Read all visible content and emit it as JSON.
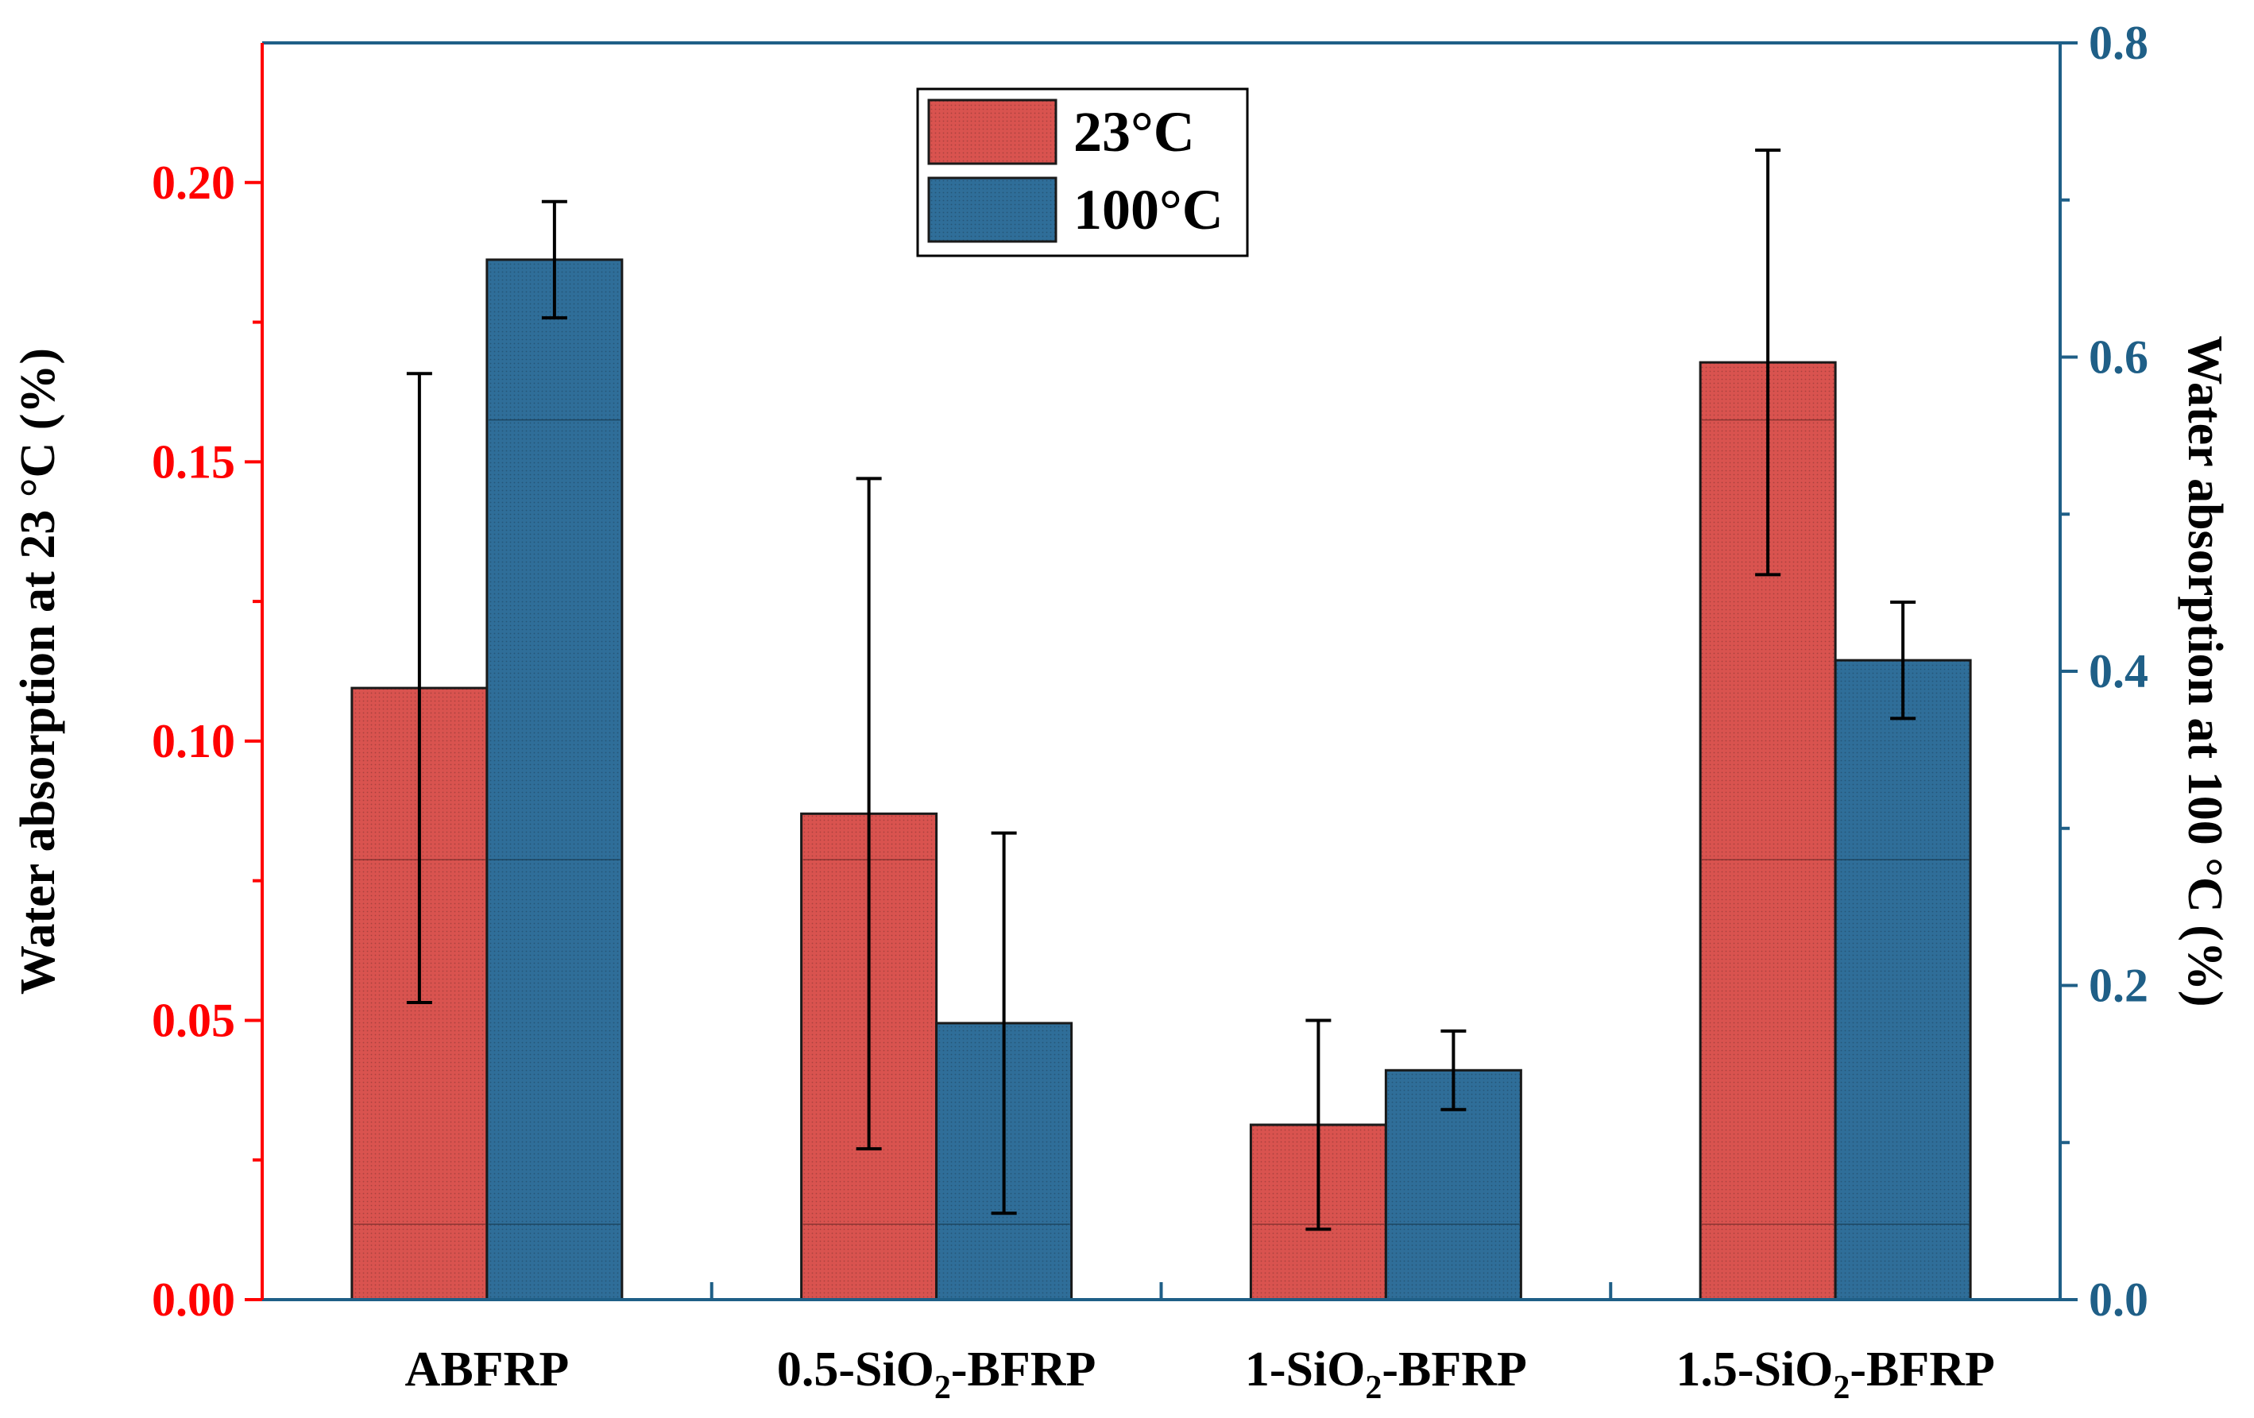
{
  "chart_data": {
    "type": "bar",
    "categories": [
      {
        "main": "ABFRP",
        "sub": "",
        "suffix": ""
      },
      {
        "main": "0.5-SiO",
        "sub": "2",
        "suffix": "-BFRP"
      },
      {
        "main": "1-SiO",
        "sub": "2",
        "suffix": "-BFRP"
      },
      {
        "main": "1.5-SiO",
        "sub": "2",
        "suffix": "-BFRP"
      }
    ],
    "series": [
      {
        "name": "23°C",
        "axis": "left",
        "color": "#d9534f",
        "values": [
          0.1095,
          0.087,
          0.0313,
          0.1678
        ],
        "error": [
          0.0563,
          0.06,
          0.0187,
          0.038
        ]
      },
      {
        "name": "100°C",
        "axis": "right",
        "color": "#2f6e99",
        "values": [
          0.662,
          0.176,
          0.146,
          0.407
        ],
        "error": [
          0.037,
          0.121,
          0.025,
          0.037
        ]
      }
    ],
    "y_left": {
      "label": "Water absorption at 23 °C (%)",
      "range": [
        0,
        0.225
      ],
      "ticks": [
        "0.00",
        "0.05",
        "0.10",
        "0.15",
        "0.20"
      ],
      "color": "#ff0000"
    },
    "y_right": {
      "label": "Water absorption at 100 °C (%)",
      "range": [
        0,
        0.8
      ],
      "ticks": [
        "0.0",
        "0.2",
        "0.4",
        "0.6",
        "0.8"
      ],
      "color": "#1f5f87"
    },
    "legend_position": "top-center",
    "grid": false
  }
}
